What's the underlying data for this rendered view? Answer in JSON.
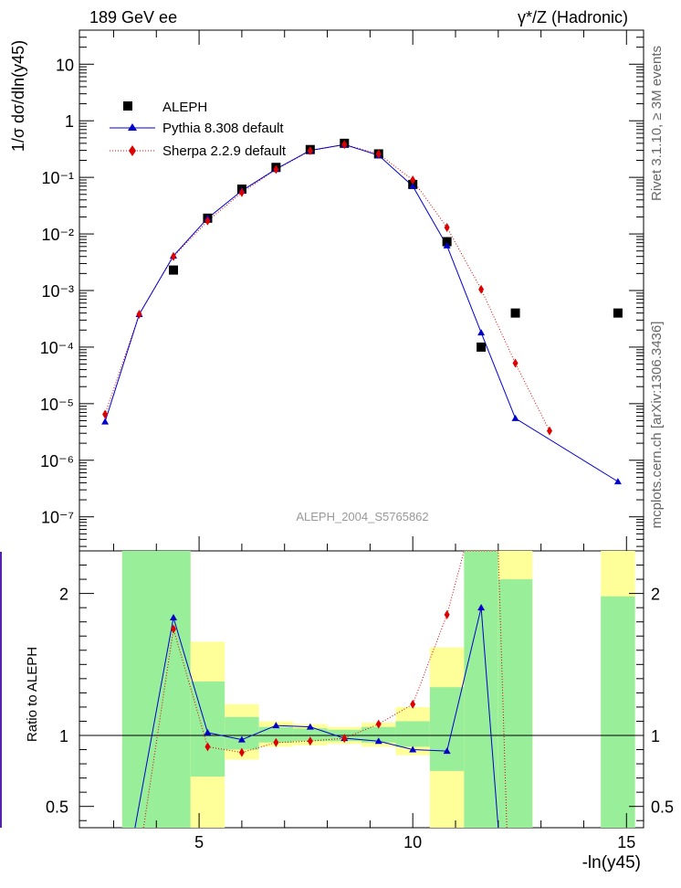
{
  "header": {
    "left": "189 GeV ee",
    "right": "γ*/Z (Hadronic)"
  },
  "side_labels": {
    "rivet": "Rivet 3.1.10, ≥ 3M events",
    "mcplots": "mcplots.cern.ch [arXiv:1306.3436]"
  },
  "analysis_id": "ALEPH_2004_S5765862",
  "colors": {
    "aleph": "#000000",
    "pythia": "#0000cc",
    "sherpa": "#dd0000",
    "band_inner": "#99ee99",
    "band_outer": "#ffff99"
  },
  "chart_data": [
    {
      "type": "scatter",
      "ylabel": "1/σ dσ/dln(y45)",
      "xlabel": "-ln(y45)",
      "xlim": [
        2.2,
        15.4
      ],
      "ylim": [
        2.5e-08,
        40
      ],
      "log_y": true,
      "ytick_labels": [
        "10⁻⁷",
        "10⁻⁶",
        "10⁻⁵",
        "10⁻⁴",
        "10⁻³",
        "10⁻²",
        "10⁻¹",
        "1",
        "10"
      ],
      "legend_placement": "top-left",
      "series": [
        {
          "name": "ALEPH",
          "style": "black-square",
          "x": [
            4.4,
            5.2,
            6.0,
            6.8,
            7.6,
            8.4,
            9.2,
            10.0,
            10.8,
            11.6,
            12.4,
            14.8
          ],
          "y": [
            0.0023,
            0.019,
            0.062,
            0.15,
            0.31,
            0.4,
            0.26,
            0.075,
            0.0073,
            0.0001,
            0.0004,
            0.0004
          ]
        },
        {
          "name": "Pythia 8.308 default",
          "style": "blue-triangle-solid",
          "x": [
            2.8,
            3.6,
            4.4,
            5.2,
            6.0,
            6.8,
            7.6,
            8.4,
            9.2,
            10.0,
            10.8,
            11.6,
            12.4,
            14.8
          ],
          "y": [
            4.8e-06,
            0.00038,
            0.0041,
            0.019,
            0.058,
            0.14,
            0.3,
            0.38,
            0.245,
            0.07,
            0.0062,
            0.00018,
            5.5e-06,
            4.2e-07
          ]
        },
        {
          "name": "Sherpa 2.2.9 default",
          "style": "red-diamond-dotted",
          "x": [
            2.8,
            3.6,
            4.4,
            5.2,
            6.0,
            6.8,
            7.6,
            8.4,
            9.2,
            10.0,
            10.8,
            11.6,
            12.4,
            13.2
          ],
          "y": [
            6.5e-06,
            0.00038,
            0.004,
            0.017,
            0.054,
            0.138,
            0.295,
            0.38,
            0.26,
            0.09,
            0.013,
            0.00105,
            5.2e-05,
            3.3e-06
          ]
        }
      ]
    },
    {
      "type": "line",
      "ylabel": "Ratio to ALEPH",
      "xlabel": "-ln(y45)",
      "xlim": [
        2.2,
        15.4
      ],
      "ylim": [
        0.35,
        2.3
      ],
      "ytick_labels": [
        "0.5",
        "1",
        "2"
      ],
      "xtick_labels": [
        "5",
        "10",
        "15"
      ],
      "reference_line": 1,
      "uncertainty_bands": [
        {
          "x_from": 3.2,
          "x_to": 4.8,
          "inner": [
            0.35,
            2.3
          ],
          "outer": [
            0.35,
            2.3
          ]
        },
        {
          "x_from": 4.8,
          "x_to": 5.6,
          "inner": [
            0.71,
            1.38
          ],
          "outer": [
            0.35,
            1.66
          ]
        },
        {
          "x_from": 5.6,
          "x_to": 6.4,
          "inner": [
            0.9,
            1.13
          ],
          "outer": [
            0.83,
            1.22
          ]
        },
        {
          "x_from": 6.4,
          "x_to": 7.2,
          "inner": [
            0.95,
            1.06
          ],
          "outer": [
            0.92,
            1.1
          ]
        },
        {
          "x_from": 7.2,
          "x_to": 8.0,
          "inner": [
            0.96,
            1.05
          ],
          "outer": [
            0.93,
            1.08
          ]
        },
        {
          "x_from": 8.0,
          "x_to": 8.8,
          "inner": [
            0.96,
            1.04
          ],
          "outer": [
            0.94,
            1.06
          ]
        },
        {
          "x_from": 8.8,
          "x_to": 9.6,
          "inner": [
            0.95,
            1.06
          ],
          "outer": [
            0.92,
            1.09
          ]
        },
        {
          "x_from": 9.6,
          "x_to": 10.4,
          "inner": [
            0.92,
            1.1
          ],
          "outer": [
            0.86,
            1.2
          ]
        },
        {
          "x_from": 10.4,
          "x_to": 11.2,
          "inner": [
            0.75,
            1.34
          ],
          "outer": [
            0.35,
            1.62
          ]
        },
        {
          "x_from": 11.2,
          "x_to": 12.0,
          "inner": [
            0.35,
            2.3
          ],
          "outer": [
            0.35,
            2.3
          ]
        },
        {
          "x_from": 12.0,
          "x_to": 12.8,
          "inner": [
            0.35,
            2.1
          ],
          "outer": [
            0.35,
            2.3
          ]
        },
        {
          "x_from": 14.4,
          "x_to": 15.2,
          "inner": [
            0.35,
            1.98
          ],
          "outer": [
            0.35,
            2.3
          ]
        }
      ],
      "series": [
        {
          "name": "Pythia 8.308 default",
          "x": [
            3.5,
            4.4,
            5.2,
            6.0,
            6.8,
            7.6,
            8.4,
            9.2,
            10.0,
            10.8,
            11.6,
            12.0
          ],
          "y": [
            0.35,
            1.83,
            1.02,
            0.97,
            1.07,
            1.06,
            0.98,
            0.96,
            0.9,
            0.89,
            1.9,
            0.35
          ]
        },
        {
          "name": "Sherpa 2.2.9 default",
          "x": [
            3.7,
            4.4,
            5.2,
            6.0,
            6.8,
            7.6,
            8.4,
            9.2,
            10.0,
            10.8,
            11.2,
            12.0,
            12.2
          ],
          "y": [
            0.35,
            1.75,
            0.92,
            0.88,
            0.95,
            0.96,
            0.98,
            1.08,
            1.22,
            1.85,
            2.3,
            2.3,
            0.35
          ]
        }
      ]
    }
  ]
}
